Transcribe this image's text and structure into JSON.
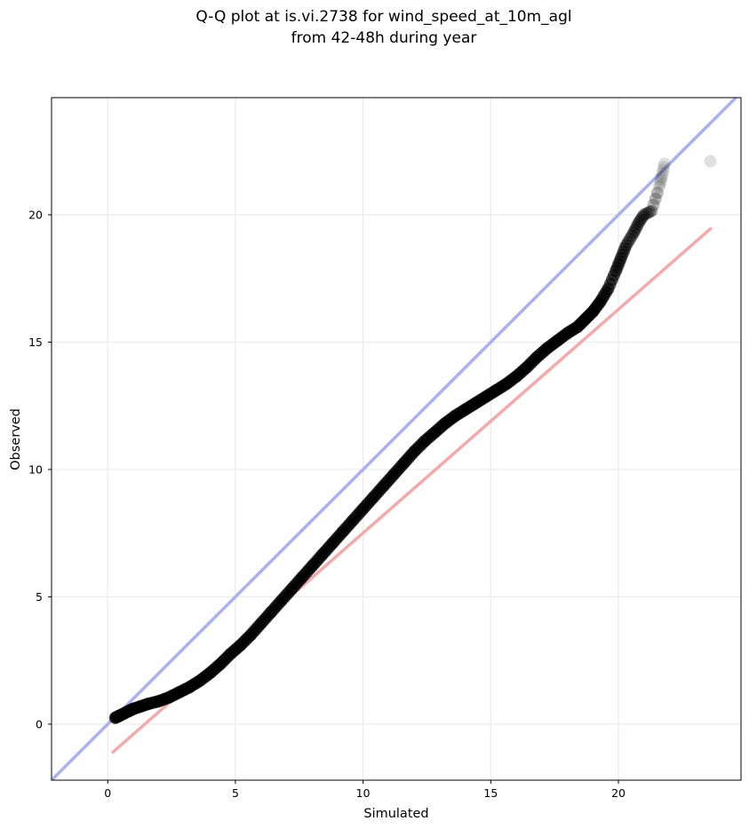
{
  "chart_data": {
    "type": "scatter",
    "title": "Q-Q plot at is.vi.2738 for wind_speed_at_10m_agl",
    "subtitle": "from 42-48h during year",
    "xlabel": "Simulated",
    "ylabel": "Observed",
    "xlim": [
      -2.2,
      24.8
    ],
    "ylim": [
      -2.2,
      24.6
    ],
    "x_ticks": [
      0,
      5,
      10,
      15,
      20
    ],
    "y_ticks": [
      0,
      5,
      10,
      15,
      20
    ],
    "x_tick_labels": [
      "0",
      "5",
      "10",
      "15",
      "20"
    ],
    "y_tick_labels": [
      "0",
      "5",
      "10",
      "15",
      "20"
    ],
    "grid": true,
    "colors": {
      "points": "#000000",
      "identity_line": "#aab0f4",
      "fit_line": "#f4aaaa",
      "grid": "#ebebeb"
    },
    "reference_lines": [
      {
        "kind": "identity",
        "points": [
          [
            -2.2,
            -2.2
          ],
          [
            24.8,
            24.8
          ]
        ]
      },
      {
        "kind": "fit",
        "points": [
          [
            0.2,
            -1.1
          ],
          [
            23.6,
            19.45
          ]
        ]
      }
    ],
    "quantiles": {
      "x": [
        0.3,
        0.5,
        0.8,
        1.0,
        1.3,
        1.6,
        2.0,
        2.4,
        2.8,
        3.2,
        3.6,
        4.0,
        4.4,
        4.8,
        5.2,
        5.6,
        6.0,
        6.4,
        6.8,
        7.2,
        7.6,
        8.0,
        8.4,
        8.8,
        9.2,
        9.6,
        10.0,
        10.4,
        10.8,
        11.2,
        11.6,
        12.0,
        12.4,
        12.8,
        13.2,
        13.6,
        14.0,
        14.4,
        14.8,
        15.2,
        15.6,
        16.0,
        16.4,
        16.8,
        17.2,
        17.6,
        18.0,
        18.4,
        18.7,
        19.0,
        19.3,
        19.6,
        19.9,
        20.1,
        20.3,
        20.6,
        20.8,
        21.0,
        21.3,
        21.6,
        21.7,
        21.8,
        23.6
      ],
      "y": [
        0.25,
        0.35,
        0.5,
        0.6,
        0.7,
        0.8,
        0.9,
        1.05,
        1.25,
        1.45,
        1.7,
        2.0,
        2.35,
        2.75,
        3.1,
        3.5,
        3.95,
        4.4,
        4.85,
        5.3,
        5.75,
        6.2,
        6.65,
        7.1,
        7.55,
        8.0,
        8.45,
        8.9,
        9.35,
        9.8,
        10.25,
        10.7,
        11.1,
        11.45,
        11.8,
        12.1,
        12.35,
        12.6,
        12.85,
        13.1,
        13.35,
        13.65,
        14.0,
        14.4,
        14.75,
        15.05,
        15.35,
        15.6,
        15.9,
        16.2,
        16.6,
        17.1,
        17.8,
        18.3,
        18.8,
        19.3,
        19.7,
        20.0,
        20.15,
        21.1,
        21.5,
        22.0,
        22.1
      ]
    }
  }
}
